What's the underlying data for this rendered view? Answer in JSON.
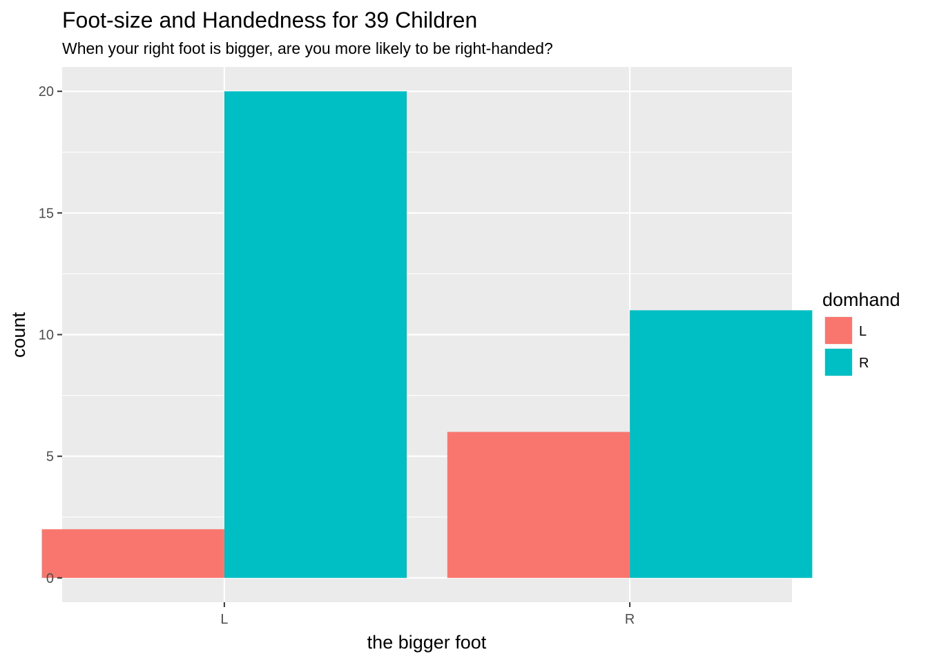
{
  "chart_data": {
    "type": "bar",
    "title": "Foot-size and Handedness for 39 Children",
    "subtitle": "When your right foot is bigger, are you more likely to be right-handed?",
    "xlabel": "the bigger foot",
    "ylabel": "count",
    "categories": [
      "L",
      "R"
    ],
    "series": [
      {
        "name": "L",
        "color": "#F8766D",
        "values": [
          2,
          6
        ]
      },
      {
        "name": "R",
        "color": "#00BFC4",
        "values": [
          20,
          11
        ]
      }
    ],
    "ylim": [
      -1,
      21
    ],
    "yticks": [
      0,
      5,
      10,
      15,
      20
    ],
    "ytick_labels": [
      "0",
      "5",
      "10",
      "15",
      "20"
    ],
    "grid": true,
    "legend": {
      "title": "domhand",
      "position": "right"
    },
    "panel_background": "#EBEBEB",
    "grid_color": "#FFFFFF"
  }
}
